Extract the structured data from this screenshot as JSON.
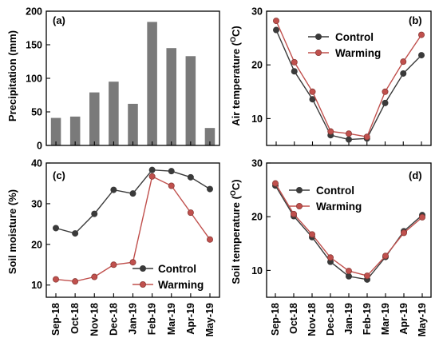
{
  "colors": {
    "bar": "#7a7a7a",
    "control": "#3a3a3a",
    "warming": "#c0504d",
    "axis": "#000000"
  },
  "chart_data": [
    {
      "type": "bar",
      "panel_label": "(a)",
      "categories": [
        "Sep-18",
        "Oct-18",
        "Nov-18",
        "Dec-18",
        "Jan-19",
        "Feb-19",
        "Mar-19",
        "Apr-19",
        "May-19"
      ],
      "values": [
        41,
        43,
        79,
        95,
        62,
        184,
        145,
        133,
        26
      ],
      "ylabel": "Precipitation (mm)",
      "ylim": [
        0,
        200
      ],
      "yticks": [
        0,
        50,
        100,
        150,
        200
      ]
    },
    {
      "type": "line",
      "panel_label": "(b)",
      "categories": [
        "Sep-18",
        "Oct-18",
        "Nov-18",
        "Dec-18",
        "Jan-19",
        "Feb-19",
        "Mar-19",
        "Apr-19",
        "May-19"
      ],
      "series": [
        {
          "name": "Control",
          "values": [
            26.5,
            18.8,
            13.6,
            6.9,
            6.1,
            6.3,
            12.9,
            18.4,
            21.8
          ]
        },
        {
          "name": "Warming",
          "values": [
            28.2,
            20.5,
            15.0,
            7.6,
            7.2,
            6.6,
            15.0,
            20.6,
            25.6
          ]
        }
      ],
      "ylabel_main": "Air temperature (",
      "ylabel_sup": "O",
      "ylabel_end": "C)",
      "ylim": [
        5,
        30
      ],
      "yticks": [
        10,
        20,
        30
      ],
      "legend": "top-center"
    },
    {
      "type": "line",
      "panel_label": "(c)",
      "categories": [
        "Sep-18",
        "Oct-18",
        "Nov-18",
        "Dec-18",
        "Jan-19",
        "Feb-19",
        "Mar-19",
        "Apr-19",
        "May-19"
      ],
      "series": [
        {
          "name": "Control",
          "values": [
            24.0,
            22.7,
            27.5,
            33.4,
            32.5,
            38.3,
            38.0,
            36.5,
            33.6
          ]
        },
        {
          "name": "Warming",
          "values": [
            11.4,
            10.9,
            12.0,
            15.0,
            15.6,
            36.7,
            34.4,
            27.8,
            21.2
          ]
        }
      ],
      "ylabel": "Soil moisture (%)",
      "ylim": [
        7,
        40
      ],
      "yticks": [
        10,
        20,
        30,
        40
      ],
      "legend": "bottom-right"
    },
    {
      "type": "line",
      "panel_label": "(d)",
      "categories": [
        "Sep-18",
        "Oct-18",
        "Nov-18",
        "Dec-18",
        "Jan-19",
        "Feb-19",
        "Mar-19",
        "Apr-19",
        "May-19"
      ],
      "series": [
        {
          "name": "Control",
          "values": [
            25.8,
            20.1,
            16.2,
            11.6,
            8.9,
            8.3,
            12.5,
            17.3,
            20.3
          ]
        },
        {
          "name": "Warming",
          "values": [
            26.2,
            20.5,
            16.7,
            12.4,
            9.9,
            9.0,
            12.7,
            17.0,
            19.9
          ]
        }
      ],
      "ylabel_main": "Soil temperature (",
      "ylabel_sup": "O",
      "ylabel_end": "C)",
      "ylim": [
        5,
        30
      ],
      "yticks": [
        10,
        20,
        30
      ],
      "legend": "top-left"
    }
  ]
}
